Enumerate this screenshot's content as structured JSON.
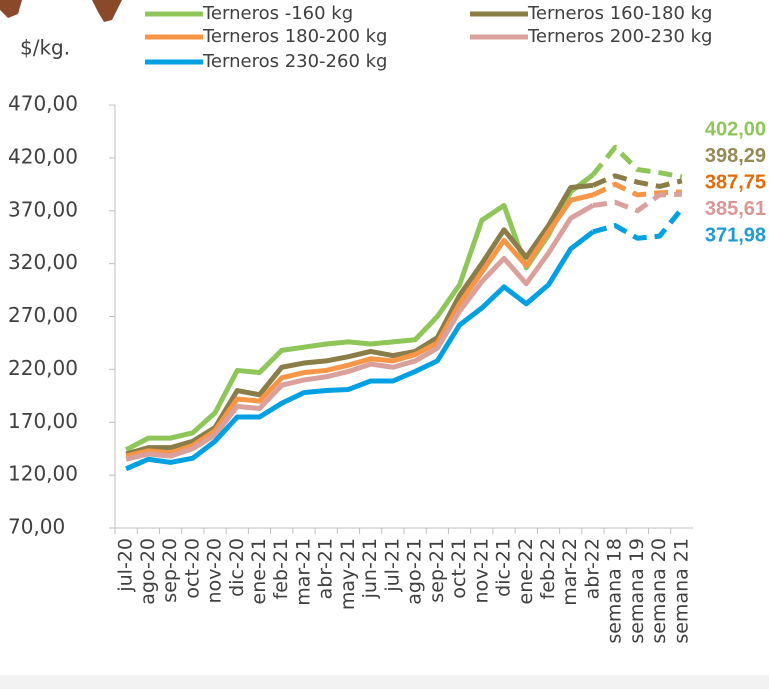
{
  "chart_data": {
    "type": "line",
    "ylabel": "$/kg.",
    "categories": [
      "jul-20",
      "ago-20",
      "sep-20",
      "oct-20",
      "nov-20",
      "dic-20",
      "ene-21",
      "feb-21",
      "mar-21",
      "abr-21",
      "may-21",
      "jun-21",
      "jul-21",
      "ago-21",
      "sep-21",
      "oct-21",
      "nov-21",
      "dic-21",
      "ene-22",
      "feb-22",
      "mar-22",
      "abr-22",
      "semana 18",
      "semana 19",
      "semana 20",
      "semana 21"
    ],
    "dashed_after": "abr-22",
    "ylim": [
      70,
      470
    ],
    "yticks": [
      {
        "value": 70,
        "label": "70,00"
      },
      {
        "value": 120,
        "label": "120,00"
      },
      {
        "value": 170,
        "label": "170,00"
      },
      {
        "value": 220,
        "label": "220,00"
      },
      {
        "value": 270,
        "label": "270,00"
      },
      {
        "value": 320,
        "label": "320,00"
      },
      {
        "value": 370,
        "label": "370,00"
      },
      {
        "value": 420,
        "label": "420,00"
      },
      {
        "value": 470,
        "label": "470,00"
      }
    ],
    "series": [
      {
        "name": "Terneros -160 kg",
        "color": "#8fc65a",
        "label_color": "#8fc65a",
        "values": [
          144,
          155,
          155,
          160,
          179,
          219,
          217,
          238,
          241,
          244,
          246,
          244,
          246,
          248,
          270,
          300,
          361,
          375,
          316,
          347,
          388,
          404,
          430,
          409,
          406,
          402
        ],
        "value_labels": {
          "25": "402,00"
        }
      },
      {
        "name": "Terneros 160-180 kg",
        "color": "#8b7d47",
        "label_color": "#958a55",
        "values": [
          140,
          146,
          146,
          152,
          165,
          200,
          196,
          222,
          226,
          228,
          232,
          237,
          233,
          237,
          250,
          290,
          320,
          352,
          326,
          356,
          392,
          394,
          403,
          397,
          393,
          398.29
        ],
        "value_labels": {
          "25": "398,29"
        }
      },
      {
        "name": "Terneros 180-200 kg",
        "color": "#f79646",
        "label_color": "#e36c09",
        "values": [
          138,
          143,
          141,
          148,
          162,
          192,
          190,
          212,
          217,
          219,
          224,
          230,
          228,
          234,
          245,
          282,
          312,
          342,
          318,
          350,
          380,
          385,
          395,
          385,
          387,
          387.75
        ],
        "value_labels": {
          "25": "387,75"
        }
      },
      {
        "name": "Terneros 200-230 kg",
        "color": "#d9a09c",
        "label_color": "#d99694",
        "values": [
          135,
          140,
          138,
          145,
          158,
          185,
          183,
          205,
          210,
          213,
          218,
          225,
          222,
          228,
          240,
          275,
          303,
          325,
          301,
          330,
          363,
          375,
          378,
          370,
          385,
          385.61
        ],
        "value_labels": {
          "25": "385,61"
        }
      },
      {
        "name": "Terneros 230-260 kg",
        "color": "#00a0e3",
        "label_color": "#1f9ad6",
        "values": [
          126,
          135,
          132,
          136,
          152,
          175,
          175,
          188,
          198,
          200,
          201,
          209,
          209,
          218,
          228,
          262,
          278,
          298,
          282,
          300,
          334,
          350,
          356,
          344,
          346,
          371.98
        ],
        "value_labels": {
          "25": "371,98"
        }
      }
    ]
  }
}
